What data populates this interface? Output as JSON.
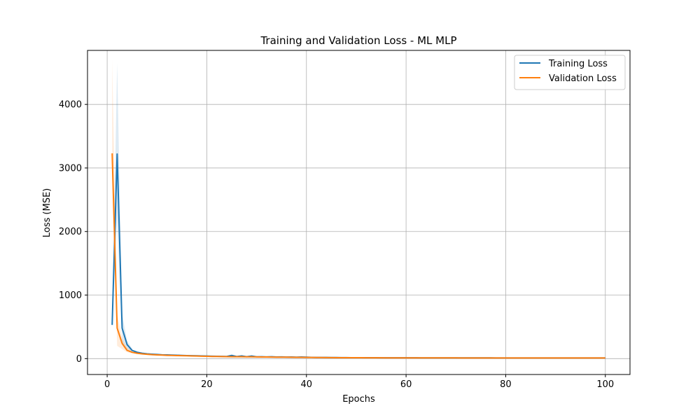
{
  "chart_data": {
    "type": "line",
    "title": "Training and Validation Loss - ML MLP",
    "xlabel": "Epochs",
    "ylabel": "Loss (MSE)",
    "xlim": [
      -3.95,
      104.95
    ],
    "ylim": [
      -250,
      4850
    ],
    "xticks": [
      0,
      20,
      40,
      60,
      80,
      100
    ],
    "yticks": [
      0,
      1000,
      2000,
      3000,
      4000
    ],
    "grid": true,
    "legend_position": "top-right",
    "colors": {
      "training": "#1f77b4",
      "validation": "#ff7f0e"
    },
    "bands": [
      {
        "name": "Training Loss",
        "x": [
          1,
          2,
          3,
          4,
          5
        ],
        "low": [
          530,
          2200,
          250,
          150,
          100
        ],
        "high": [
          530,
          4650,
          700,
          280,
          160
        ]
      },
      {
        "name": "Validation Loss",
        "x": [
          1,
          2,
          3,
          4,
          5
        ],
        "low": [
          3200,
          200,
          150,
          100,
          80
        ],
        "high": [
          4700,
          700,
          320,
          180,
          130
        ]
      }
    ],
    "series": [
      {
        "name": "Training Loss",
        "x": [
          1,
          2,
          3,
          4,
          5,
          6,
          7,
          8,
          9,
          10,
          11,
          12,
          13,
          14,
          15,
          16,
          17,
          18,
          19,
          20,
          21,
          22,
          23,
          24,
          25,
          26,
          27,
          28,
          29,
          30,
          31,
          32,
          33,
          34,
          35,
          36,
          37,
          38,
          39,
          40,
          41,
          42,
          43,
          44,
          45,
          46,
          47,
          48,
          49,
          50,
          51,
          52,
          53,
          54,
          55,
          56,
          57,
          58,
          59,
          60,
          61,
          62,
          63,
          64,
          65,
          66,
          67,
          68,
          69,
          70,
          71,
          72,
          73,
          74,
          75,
          76,
          77,
          78,
          79,
          80,
          81,
          82,
          83,
          84,
          85,
          86,
          87,
          88,
          89,
          90,
          91,
          92,
          93,
          94,
          95,
          96,
          97,
          98,
          99,
          100
        ],
        "values": [
          530,
          3220,
          480,
          220,
          130,
          100,
          85,
          75,
          70,
          65,
          60,
          58,
          55,
          53,
          50,
          48,
          46,
          44,
          42,
          40,
          38,
          36,
          35,
          34,
          50,
          32,
          42,
          30,
          40,
          28,
          30,
          27,
          30,
          25,
          27,
          24,
          26,
          23,
          25,
          22,
          20,
          19,
          18,
          18,
          17,
          17,
          16,
          16,
          15,
          15,
          15,
          14,
          14,
          14,
          13,
          13,
          13,
          13,
          13,
          13,
          13,
          13,
          12,
          12,
          12,
          12,
          12,
          12,
          12,
          11,
          11,
          11,
          11,
          11,
          11,
          11,
          11,
          10,
          10,
          10,
          10,
          10,
          10,
          10,
          10,
          10,
          10,
          10,
          10,
          10,
          10,
          10,
          10,
          10,
          10,
          10,
          10,
          10,
          10,
          10
        ]
      },
      {
        "name": "Validation Loss",
        "x": [
          1,
          2,
          3,
          4,
          5,
          6,
          7,
          8,
          9,
          10,
          11,
          12,
          13,
          14,
          15,
          16,
          17,
          18,
          19,
          20,
          21,
          22,
          23,
          24,
          25,
          26,
          27,
          28,
          29,
          30,
          31,
          32,
          33,
          34,
          35,
          36,
          37,
          38,
          39,
          40,
          41,
          42,
          43,
          44,
          45,
          46,
          47,
          48,
          49,
          50,
          51,
          52,
          53,
          54,
          55,
          56,
          57,
          58,
          59,
          60,
          61,
          62,
          63,
          64,
          65,
          66,
          67,
          68,
          69,
          70,
          71,
          72,
          73,
          74,
          75,
          76,
          77,
          78,
          79,
          80,
          81,
          82,
          83,
          84,
          85,
          86,
          87,
          88,
          89,
          90,
          91,
          92,
          93,
          94,
          95,
          96,
          97,
          98,
          99,
          100
        ],
        "values": [
          3230,
          480,
          240,
          130,
          100,
          85,
          75,
          68,
          62,
          58,
          55,
          52,
          50,
          48,
          46,
          44,
          42,
          40,
          38,
          36,
          34,
          33,
          32,
          31,
          30,
          29,
          29,
          28,
          28,
          27,
          26,
          25,
          24,
          23,
          22,
          22,
          21,
          20,
          20,
          19,
          18,
          17,
          17,
          16,
          16,
          15,
          15,
          15,
          14,
          14,
          14,
          13,
          13,
          13,
          13,
          12,
          12,
          12,
          12,
          12,
          12,
          12,
          11,
          11,
          11,
          11,
          11,
          11,
          11,
          11,
          10,
          10,
          10,
          10,
          10,
          10,
          10,
          10,
          10,
          10,
          10,
          10,
          10,
          10,
          10,
          10,
          10,
          10,
          10,
          10,
          10,
          10,
          10,
          10,
          10,
          10,
          10,
          10,
          10,
          10
        ]
      }
    ]
  }
}
